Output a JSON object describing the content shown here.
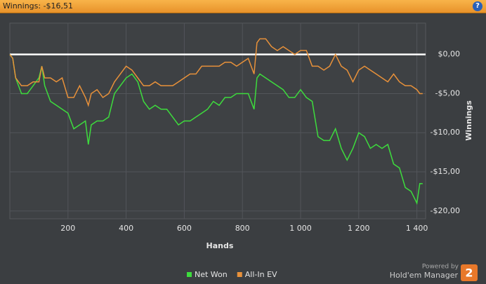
{
  "header": {
    "title": "Winnings: -$16,51"
  },
  "chart_data": {
    "type": "line",
    "x_label": "Hands",
    "y_label": "Winnings",
    "x": [
      0,
      10,
      20,
      40,
      60,
      80,
      100,
      110,
      120,
      140,
      160,
      180,
      200,
      220,
      240,
      260,
      270,
      280,
      300,
      320,
      340,
      360,
      380,
      400,
      420,
      440,
      460,
      480,
      500,
      520,
      540,
      560,
      580,
      600,
      620,
      640,
      660,
      680,
      700,
      720,
      740,
      760,
      780,
      800,
      820,
      840,
      850,
      860,
      880,
      900,
      920,
      940,
      960,
      980,
      1000,
      1020,
      1040,
      1060,
      1080,
      1100,
      1120,
      1140,
      1160,
      1180,
      1200,
      1220,
      1240,
      1260,
      1280,
      1300,
      1320,
      1340,
      1360,
      1380,
      1400,
      1410,
      1420
    ],
    "series": [
      {
        "name": "Net Won",
        "color": "#3ddc3d",
        "values": [
          0,
          -0.5,
          -3,
          -5,
          -5,
          -4,
          -3,
          -1.5,
          -4,
          -6,
          -6.5,
          -7,
          -7.5,
          -9.5,
          -9,
          -8.5,
          -11.5,
          -9,
          -8.5,
          -8.5,
          -8,
          -5,
          -4,
          -3,
          -2.5,
          -3.5,
          -6,
          -7,
          -6.5,
          -7,
          -7,
          -8,
          -9,
          -8.5,
          -8.5,
          -8,
          -7.5,
          -7,
          -6,
          -6.5,
          -5.5,
          -5.5,
          -5,
          -5,
          -5,
          -7,
          -3,
          -2.5,
          -3,
          -3.5,
          -4,
          -4.5,
          -5.5,
          -5.5,
          -4.5,
          -5.5,
          -6,
          -10.5,
          -11,
          -11,
          -9.5,
          -12,
          -13.5,
          -12,
          -10,
          -10.5,
          -12,
          -11.5,
          -12,
          -11.5,
          -14,
          -14.5,
          -17,
          -17.5,
          -19,
          -16.5,
          -16.51
        ]
      },
      {
        "name": "All-In EV",
        "color": "#e8913a",
        "values": [
          0,
          -0.5,
          -3,
          -4,
          -4,
          -3.5,
          -3.5,
          -1.5,
          -3,
          -3,
          -3.5,
          -3,
          -5.5,
          -5.5,
          -4,
          -5.5,
          -6.5,
          -5,
          -4.5,
          -5.5,
          -5,
          -3.5,
          -2.5,
          -1.5,
          -2,
          -3,
          -4,
          -4,
          -3.5,
          -4,
          -4,
          -4,
          -3.5,
          -3,
          -2.5,
          -2.5,
          -1.5,
          -1.5,
          -1.5,
          -1.5,
          -1,
          -1,
          -1.5,
          -1,
          -0.5,
          -2.5,
          1.5,
          2,
          2,
          1,
          0.5,
          1,
          0.5,
          0,
          0.5,
          0.5,
          -1.5,
          -1.5,
          -2,
          -1.5,
          0,
          -1.5,
          -2,
          -3.5,
          -2,
          -1.5,
          -2,
          -2.5,
          -3,
          -3.5,
          -2.5,
          -3.5,
          -4,
          -4,
          -4.5,
          -5,
          -5
        ]
      }
    ],
    "xlim": [
      0,
      1430
    ],
    "ylim": [
      -21,
      4
    ],
    "xticks": [
      200,
      400,
      600,
      800,
      {
        "value": 1000,
        "label": "1 000"
      },
      {
        "value": 1200,
        "label": "1 200"
      },
      {
        "value": 1400,
        "label": "1 400"
      }
    ],
    "yticks": [
      {
        "value": 0,
        "label": "$0,00"
      },
      {
        "value": -5,
        "label": "-$5,00"
      },
      {
        "value": -10,
        "label": "-$10,00"
      },
      {
        "value": -15,
        "label": "-$15,00"
      },
      {
        "value": -20,
        "label": "-$20,00"
      }
    ],
    "grid": true
  },
  "footer": {
    "powered_by": "Powered by",
    "brand": "Hold'em Manager",
    "logo": "2"
  }
}
